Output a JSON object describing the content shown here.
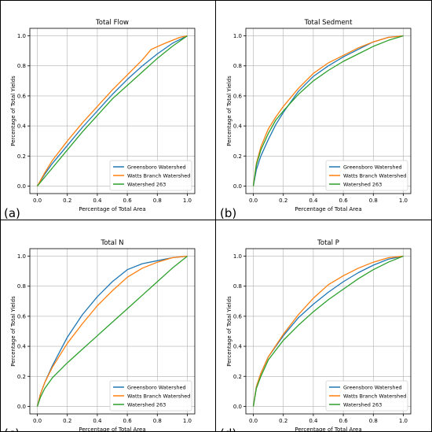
{
  "colors": {
    "blue": "#1f77b4",
    "orange": "#ff7f0e",
    "green": "#2ca02c"
  },
  "chart_data": [
    {
      "type": "line",
      "panel_label": "(a)",
      "title": "Total Flow",
      "xlabel": "Percentage of Total Area",
      "ylabel": "Percentage of Total Yields",
      "xlim": [
        -0.05,
        1.05
      ],
      "ylim": [
        -0.05,
        1.05
      ],
      "xticks": [
        "0.0",
        "0.2",
        "0.4",
        "0.6",
        "0.8",
        "1.0"
      ],
      "yticks": [
        "0.0",
        "0.2",
        "0.4",
        "0.6",
        "0.8",
        "1.0"
      ],
      "grid": true,
      "legend_loc": "lower right",
      "series": [
        {
          "name": "Greensboro Watershed",
          "color": "blue",
          "x": [
            0,
            0.05,
            0.1,
            0.2,
            0.3,
            0.4,
            0.5,
            0.6,
            0.7,
            0.8,
            0.9,
            1.0
          ],
          "y": [
            0,
            0.08,
            0.15,
            0.27,
            0.39,
            0.5,
            0.61,
            0.71,
            0.8,
            0.88,
            0.95,
            1.0
          ]
        },
        {
          "name": "Watts Branch Watershed",
          "color": "orange",
          "x": [
            0,
            0.05,
            0.1,
            0.2,
            0.3,
            0.4,
            0.5,
            0.6,
            0.7,
            0.76,
            0.85,
            0.95,
            1.0
          ],
          "y": [
            0,
            0.09,
            0.17,
            0.3,
            0.42,
            0.53,
            0.64,
            0.74,
            0.84,
            0.91,
            0.95,
            0.99,
            1.0
          ]
        },
        {
          "name": "Watershed 263",
          "color": "green",
          "x": [
            0,
            0.1,
            0.2,
            0.3,
            0.4,
            0.5,
            0.6,
            0.7,
            0.8,
            0.9,
            1.0
          ],
          "y": [
            0,
            0.12,
            0.24,
            0.36,
            0.47,
            0.58,
            0.67,
            0.76,
            0.85,
            0.93,
            1.0
          ]
        }
      ]
    },
    {
      "type": "line",
      "panel_label": "(b)",
      "title": "Total Sedment",
      "xlabel": "Percentage of Total Area",
      "ylabel": "Percentage of Total Yields",
      "xlim": [
        -0.05,
        1.05
      ],
      "ylim": [
        -0.05,
        1.05
      ],
      "xticks": [
        "0.0",
        "0.2",
        "0.4",
        "0.6",
        "0.8",
        "1.0"
      ],
      "yticks": [
        "0.0",
        "0.2",
        "0.4",
        "0.6",
        "0.8",
        "1.0"
      ],
      "grid": true,
      "legend_loc": "lower right",
      "series": [
        {
          "name": "Greensboro Watershed",
          "color": "blue",
          "x": [
            0,
            0.02,
            0.05,
            0.1,
            0.15,
            0.2,
            0.3,
            0.4,
            0.5,
            0.6,
            0.7,
            0.8,
            0.9,
            1.0
          ],
          "y": [
            0,
            0.11,
            0.2,
            0.31,
            0.41,
            0.49,
            0.63,
            0.73,
            0.8,
            0.86,
            0.91,
            0.96,
            0.99,
            1.0
          ]
        },
        {
          "name": "Watts Branch Watershed",
          "color": "orange",
          "x": [
            0,
            0.02,
            0.05,
            0.1,
            0.15,
            0.2,
            0.3,
            0.4,
            0.5,
            0.6,
            0.7,
            0.8,
            0.9,
            1.0
          ],
          "y": [
            0,
            0.15,
            0.26,
            0.38,
            0.46,
            0.53,
            0.65,
            0.75,
            0.82,
            0.87,
            0.92,
            0.96,
            0.99,
            1.0
          ]
        },
        {
          "name": "Watershed 263",
          "color": "green",
          "x": [
            0,
            0.02,
            0.05,
            0.1,
            0.15,
            0.2,
            0.3,
            0.4,
            0.5,
            0.6,
            0.7,
            0.8,
            0.9,
            1.0
          ],
          "y": [
            0,
            0.14,
            0.24,
            0.35,
            0.44,
            0.5,
            0.61,
            0.7,
            0.77,
            0.83,
            0.88,
            0.93,
            0.97,
            1.0
          ]
        }
      ]
    },
    {
      "type": "line",
      "panel_label": "(c)",
      "title": "Total N",
      "xlabel": "Percentage of Total Area",
      "ylabel": "Percentage of Total Yields",
      "xlim": [
        -0.05,
        1.05
      ],
      "ylim": [
        -0.05,
        1.05
      ],
      "xticks": [
        "0.0",
        "0.2",
        "0.4",
        "0.6",
        "0.8",
        "1.0"
      ],
      "yticks": [
        "0.0",
        "0.2",
        "0.4",
        "0.6",
        "0.8",
        "1.0"
      ],
      "grid": true,
      "legend_loc": "lower right",
      "series": [
        {
          "name": "Greensboro Watershed",
          "color": "blue",
          "x": [
            0,
            0.02,
            0.05,
            0.1,
            0.2,
            0.3,
            0.4,
            0.5,
            0.6,
            0.7,
            0.8,
            0.9,
            1.0
          ],
          "y": [
            0,
            0.08,
            0.16,
            0.27,
            0.46,
            0.61,
            0.73,
            0.83,
            0.91,
            0.95,
            0.97,
            0.99,
            1.0
          ]
        },
        {
          "name": "Watts Branch Watershed",
          "color": "orange",
          "x": [
            0,
            0.02,
            0.05,
            0.1,
            0.2,
            0.3,
            0.4,
            0.5,
            0.6,
            0.7,
            0.8,
            0.9,
            1.0
          ],
          "y": [
            0,
            0.08,
            0.16,
            0.26,
            0.42,
            0.55,
            0.67,
            0.77,
            0.86,
            0.92,
            0.96,
            0.99,
            1.0
          ]
        },
        {
          "name": "Watershed 263",
          "color": "green",
          "x": [
            0,
            0.02,
            0.05,
            0.1,
            0.2,
            0.3,
            0.4,
            0.5,
            0.6,
            0.7,
            0.8,
            0.9,
            1.0
          ],
          "y": [
            0,
            0.06,
            0.12,
            0.19,
            0.29,
            0.38,
            0.47,
            0.56,
            0.65,
            0.74,
            0.83,
            0.92,
            1.0
          ]
        }
      ]
    },
    {
      "type": "line",
      "panel_label": "(d)",
      "title": "Total P",
      "xlabel": "Percentage of Total Area",
      "ylabel": "Percentage of Total Yields",
      "xlim": [
        -0.05,
        1.05
      ],
      "ylim": [
        -0.05,
        1.05
      ],
      "xticks": [
        "0.0",
        "0.2",
        "0.4",
        "0.6",
        "0.8",
        "1.0"
      ],
      "yticks": [
        "0.0",
        "0.2",
        "0.4",
        "0.6",
        "0.8",
        "1.0"
      ],
      "grid": true,
      "legend_loc": "lower right",
      "series": [
        {
          "name": "Greensboro Watershed",
          "color": "blue",
          "x": [
            0,
            0.02,
            0.05,
            0.1,
            0.2,
            0.3,
            0.4,
            0.5,
            0.6,
            0.7,
            0.8,
            0.9,
            1.0
          ],
          "y": [
            0,
            0.13,
            0.22,
            0.33,
            0.47,
            0.59,
            0.68,
            0.76,
            0.83,
            0.89,
            0.94,
            0.98,
            1.0
          ]
        },
        {
          "name": "Watts Branch Watershed",
          "color": "orange",
          "x": [
            0,
            0.02,
            0.05,
            0.1,
            0.2,
            0.3,
            0.4,
            0.5,
            0.6,
            0.7,
            0.8,
            0.9,
            1.0
          ],
          "y": [
            0,
            0.13,
            0.22,
            0.33,
            0.48,
            0.61,
            0.72,
            0.81,
            0.87,
            0.92,
            0.96,
            0.99,
            1.0
          ]
        },
        {
          "name": "Watershed 263",
          "color": "green",
          "x": [
            0,
            0.02,
            0.05,
            0.1,
            0.2,
            0.3,
            0.4,
            0.5,
            0.6,
            0.7,
            0.8,
            0.9,
            1.0
          ],
          "y": [
            0,
            0.12,
            0.2,
            0.31,
            0.44,
            0.54,
            0.63,
            0.71,
            0.78,
            0.85,
            0.91,
            0.96,
            1.0
          ]
        }
      ]
    }
  ]
}
